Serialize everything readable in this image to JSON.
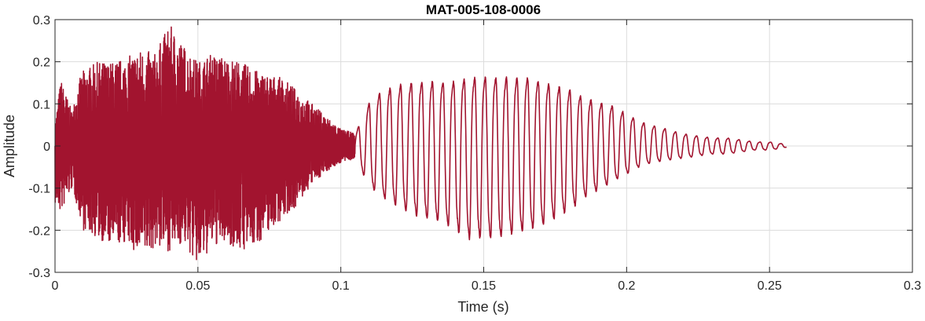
{
  "chart_data": {
    "type": "line",
    "title": "MAT-005-108-0006",
    "xlabel": "Time (s)",
    "ylabel": "Amplitude",
    "xlim": [
      0,
      0.3
    ],
    "ylim": [
      -0.3,
      0.3
    ],
    "grid": true,
    "x_ticks": [
      0,
      0.05,
      0.1,
      0.15,
      0.2,
      0.25,
      0.3
    ],
    "x_tick_labels": [
      "0",
      "0.05",
      "0.1",
      "0.15",
      "0.2",
      "0.25",
      "0.3"
    ],
    "y_ticks": [
      -0.3,
      -0.2,
      -0.1,
      0,
      0.1,
      0.2,
      0.3
    ],
    "y_tick_labels": [
      "-0.3",
      "-0.2",
      "-0.1",
      "0",
      "0.1",
      "0.2",
      "0.3"
    ],
    "series": [
      {
        "color": "#A2142F",
        "x": [
          0.0,
          0.002,
          0.004,
          0.006,
          0.008,
          0.01,
          0.015,
          0.02,
          0.025,
          0.03,
          0.035,
          0.04,
          0.045,
          0.05,
          0.055,
          0.06,
          0.065,
          0.07,
          0.075,
          0.08,
          0.085,
          0.09,
          0.095,
          0.1,
          0.105,
          0.11,
          0.115,
          0.12,
          0.125,
          0.13,
          0.135,
          0.14,
          0.145,
          0.15,
          0.155,
          0.16,
          0.165,
          0.17,
          0.175,
          0.18,
          0.185,
          0.19,
          0.195,
          0.2,
          0.205,
          0.21,
          0.215,
          0.22,
          0.225,
          0.23,
          0.235,
          0.24,
          0.245,
          0.25,
          0.255,
          0.256
        ],
        "y_upper": [
          0.05,
          0.16,
          0.12,
          0.08,
          0.15,
          0.18,
          0.2,
          0.2,
          0.21,
          0.23,
          0.22,
          0.29,
          0.24,
          0.2,
          0.22,
          0.21,
          0.2,
          0.18,
          0.17,
          0.16,
          0.13,
          0.1,
          0.07,
          0.04,
          0.03,
          0.11,
          0.14,
          0.15,
          0.16,
          0.16,
          0.16,
          0.16,
          0.17,
          0.17,
          0.17,
          0.17,
          0.17,
          0.16,
          0.15,
          0.14,
          0.12,
          0.11,
          0.1,
          0.08,
          0.06,
          0.05,
          0.04,
          0.03,
          0.025,
          0.02,
          0.02,
          0.015,
          0.01,
          0.01,
          0.005,
          0.005
        ],
        "y_lower": [
          -0.14,
          -0.16,
          -0.13,
          -0.1,
          -0.15,
          -0.2,
          -0.22,
          -0.24,
          -0.23,
          -0.27,
          -0.24,
          -0.25,
          -0.23,
          -0.29,
          -0.24,
          -0.23,
          -0.25,
          -0.24,
          -0.2,
          -0.17,
          -0.14,
          -0.09,
          -0.06,
          -0.04,
          -0.03,
          -0.1,
          -0.13,
          -0.15,
          -0.17,
          -0.18,
          -0.19,
          -0.21,
          -0.23,
          -0.23,
          -0.23,
          -0.22,
          -0.21,
          -0.2,
          -0.18,
          -0.16,
          -0.13,
          -0.11,
          -0.09,
          -0.07,
          -0.05,
          -0.04,
          -0.035,
          -0.03,
          -0.025,
          -0.02,
          -0.02,
          -0.015,
          -0.01,
          -0.01,
          -0.005,
          -0.003
        ],
        "cycle_period_s": 0.0037
      }
    ]
  }
}
